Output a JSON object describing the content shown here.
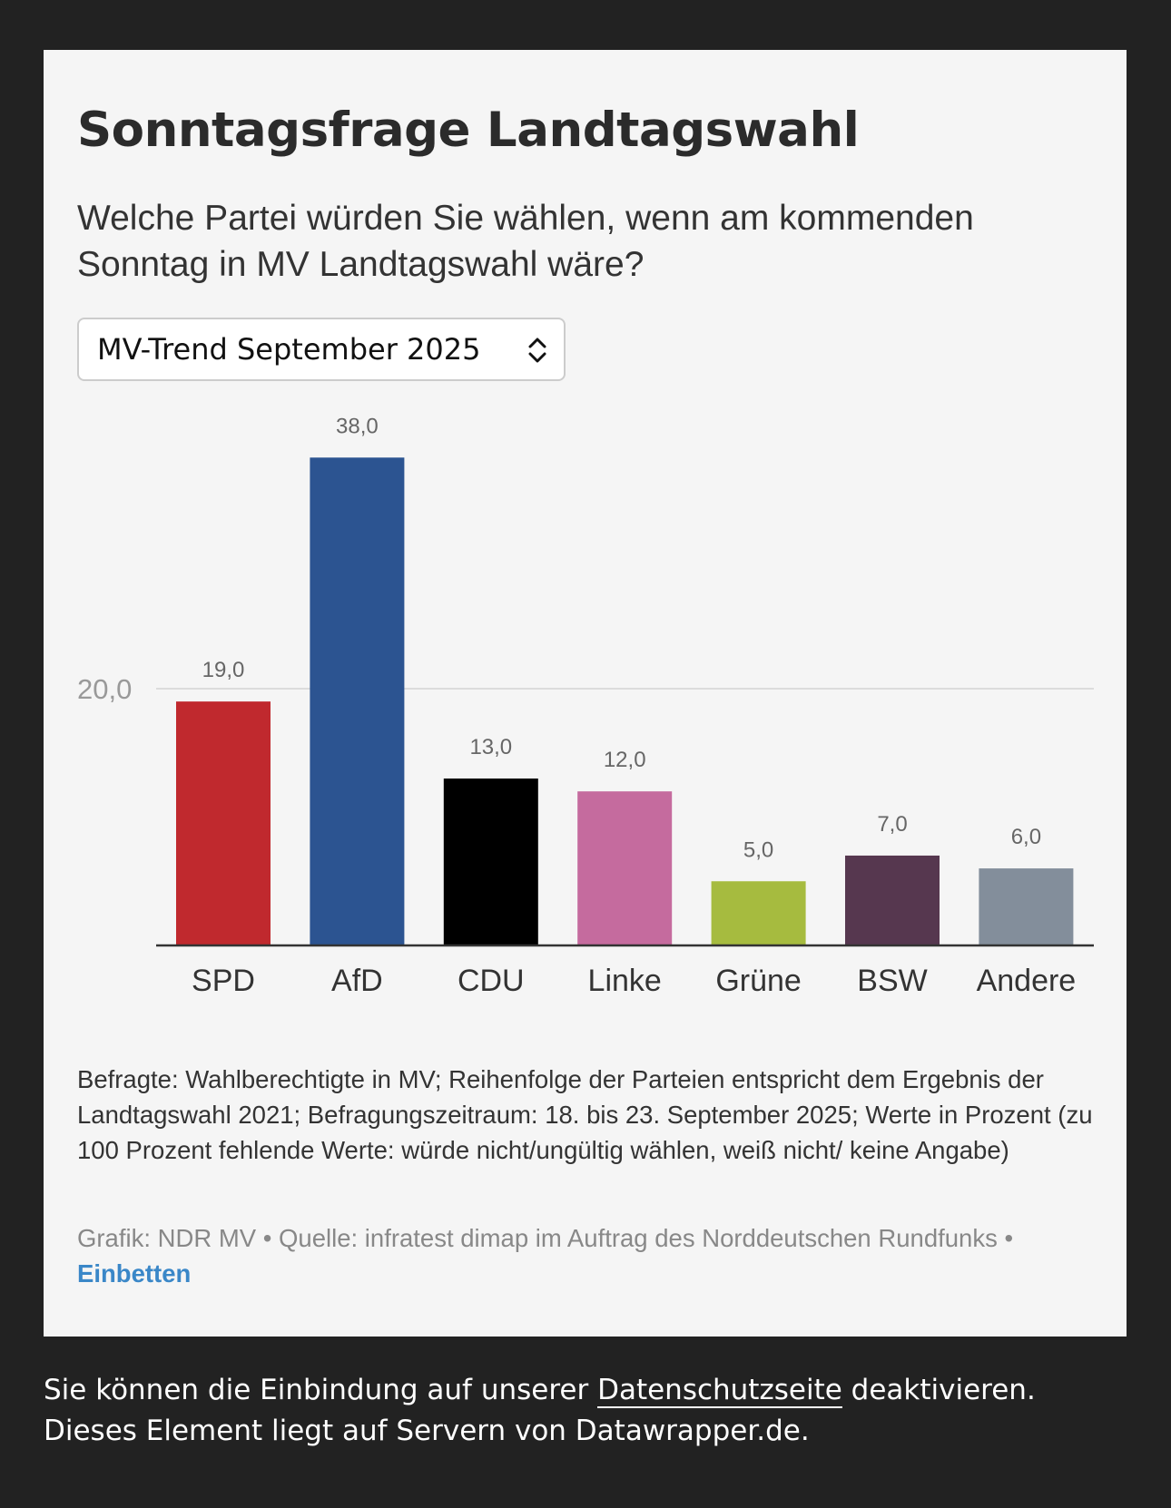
{
  "header": {
    "title": "Sonntagsfrage Landtagswahl",
    "subtitle": "Welche Partei würden Sie wählen, wenn am kommenden Sonntag in MV Landtagswahl wäre?"
  },
  "selector": {
    "value": "MV-Trend September 2025"
  },
  "chart_data": {
    "type": "bar",
    "categories": [
      "SPD",
      "AfD",
      "CDU",
      "Linke",
      "Grüne",
      "BSW",
      "Andere"
    ],
    "values": [
      19.0,
      38.0,
      13.0,
      12.0,
      5.0,
      7.0,
      6.0
    ],
    "value_labels": [
      "19,0",
      "38,0",
      "13,0",
      "12,0",
      "5,0",
      "7,0",
      "6,0"
    ],
    "colors": [
      "#c0292e",
      "#2c5491",
      "#000000",
      "#c56b9e",
      "#a6bb3f",
      "#56374f",
      "#838e9b"
    ],
    "yticks": [
      20
    ],
    "ytick_labels": [
      "20,0"
    ],
    "ylim": [
      0,
      40
    ],
    "grid": true
  },
  "notes": "Befragte: Wahlberechtigte in MV; Reihenfolge der Parteien entspricht dem Ergebnis der Landtagswahl 2021; Befragungszeitraum: 18. bis 23. September 2025; Werte in Prozent (zu 100 Prozent fehlende Werte: würde nicht/ungültig wählen, weiß nicht/ keine Angabe)",
  "source": {
    "graphic": "Grafik: NDR MV",
    "sep": " • ",
    "source": "Quelle: infratest dimap im Auftrag des Norddeutschen Rundfunks",
    "embed": "Einbetten"
  },
  "footer": {
    "pre": "Sie können die Einbindung auf unserer ",
    "link": "Datenschutzseite",
    "post": " deaktivieren.",
    "line2": "Dieses Element liegt auf Servern von Datawrapper.de."
  }
}
